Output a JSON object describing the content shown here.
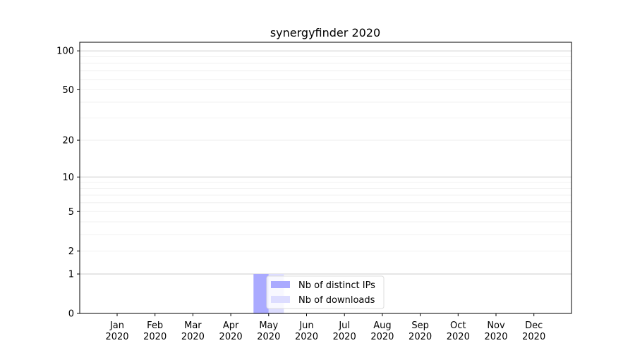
{
  "chart_data": {
    "type": "bar",
    "title": "synergyfinder 2020",
    "xlabel": "",
    "ylabel": "",
    "y_scale": "log(1+y)",
    "ylim": [
      0,
      116
    ],
    "yticks": [
      0,
      1,
      2,
      5,
      10,
      20,
      50,
      100
    ],
    "grid": true,
    "legend_placement": "lower-center",
    "categories": [
      "Jan\n2020",
      "Feb\n2020",
      "Mar\n2020",
      "Apr\n2020",
      "May\n2020",
      "Jun\n2020",
      "Jul\n2020",
      "Aug\n2020",
      "Sep\n2020",
      "Oct\n2020",
      "Nov\n2020",
      "Dec\n2020"
    ],
    "series": [
      {
        "name": "Nb of distinct IPs",
        "color": "#aaaaff",
        "values": [
          0,
          0,
          0,
          0,
          1,
          0,
          0,
          0,
          0,
          0,
          0,
          0
        ]
      },
      {
        "name": "Nb of downloads",
        "color": "#ddddff",
        "values": [
          0,
          0,
          0,
          0,
          1,
          0,
          0,
          0,
          0,
          0,
          0,
          0
        ]
      }
    ]
  }
}
